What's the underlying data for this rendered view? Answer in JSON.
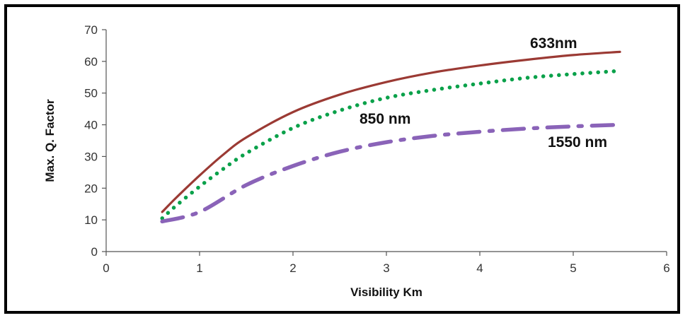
{
  "chart_data": {
    "type": "line",
    "title": "",
    "xlabel": "Visibility Km",
    "ylabel": "Max. Q. Factor",
    "xlim": [
      0,
      6
    ],
    "ylim": [
      0,
      70
    ],
    "xticks": [
      0,
      1,
      2,
      3,
      4,
      5,
      6
    ],
    "yticks": [
      0,
      10,
      20,
      30,
      40,
      50,
      60,
      70
    ],
    "grid": false,
    "series": [
      {
        "name": "633nm",
        "color": "#9b3a34",
        "style": "solid",
        "x": [
          0.6,
          0.75,
          1.0,
          1.25,
          1.5,
          2.0,
          2.5,
          3.0,
          3.5,
          4.0,
          4.5,
          5.0,
          5.5
        ],
        "values": [
          12.5,
          17,
          24,
          30.5,
          36,
          44,
          49.5,
          53.5,
          56.5,
          58.7,
          60.5,
          62,
          63
        ]
      },
      {
        "name": "850 nm",
        "color": "#0aa14a",
        "style": "dotted",
        "x": [
          0.6,
          0.75,
          1.0,
          1.25,
          1.5,
          2.0,
          2.5,
          3.0,
          3.5,
          4.0,
          4.5,
          5.0,
          5.5
        ],
        "values": [
          10.5,
          14.5,
          20.5,
          26,
          31,
          39,
          44.5,
          48.5,
          51,
          53,
          54.8,
          56,
          57
        ]
      },
      {
        "name": "1550 nm",
        "color": "#8a63b8",
        "style": "dash-dot",
        "x": [
          0.6,
          1.0,
          1.5,
          2.0,
          2.5,
          3.0,
          3.5,
          4.0,
          4.5,
          5.0,
          5.5
        ],
        "values": [
          9.5,
          12.5,
          21,
          27,
          31.5,
          34.5,
          36.5,
          37.8,
          38.8,
          39.5,
          40
        ]
      }
    ]
  }
}
